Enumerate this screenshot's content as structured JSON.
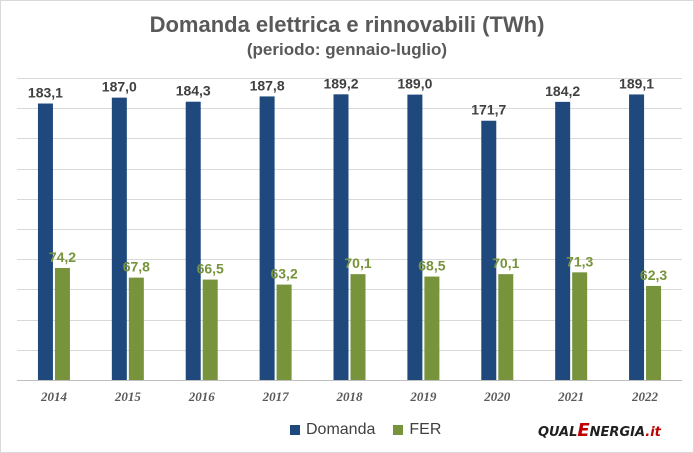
{
  "chart_data": {
    "type": "bar",
    "title": "Domanda elettrica e rinnovabili (TWh)",
    "subtitle": "(periodo: gennaio-luglio)",
    "categories": [
      "2014",
      "2015",
      "2016",
      "2017",
      "2018",
      "2019",
      "2020",
      "2021",
      "2022"
    ],
    "series": [
      {
        "name": "Domanda",
        "color": "#1f497d",
        "label_color": "#404040",
        "values": [
          183.1,
          187.0,
          184.3,
          187.8,
          189.2,
          189.0,
          171.7,
          184.2,
          189.1
        ],
        "labels": [
          "183,1",
          "187,0",
          "184,3",
          "187,8",
          "189,2",
          "189,0",
          "171,7",
          "184,2",
          "189,1"
        ]
      },
      {
        "name": "FER",
        "color": "#77933c",
        "label_color": "#77933c",
        "values": [
          74.2,
          67.8,
          66.5,
          63.2,
          70.1,
          68.5,
          70.1,
          71.3,
          62.3
        ],
        "labels": [
          "74,2",
          "67,8",
          "66,5",
          "63,2",
          "70,1",
          "68,5",
          "70,1",
          "71,3",
          "62,3"
        ]
      }
    ],
    "ylim": [
      0,
      200
    ],
    "gridlines": true,
    "y_tick_labels_shown": false,
    "legend_position": "bottom"
  },
  "logo": {
    "text_before": "QUAL",
    "big_letter": "E",
    "text_after": "NERGIA",
    "suffix": ".it"
  }
}
